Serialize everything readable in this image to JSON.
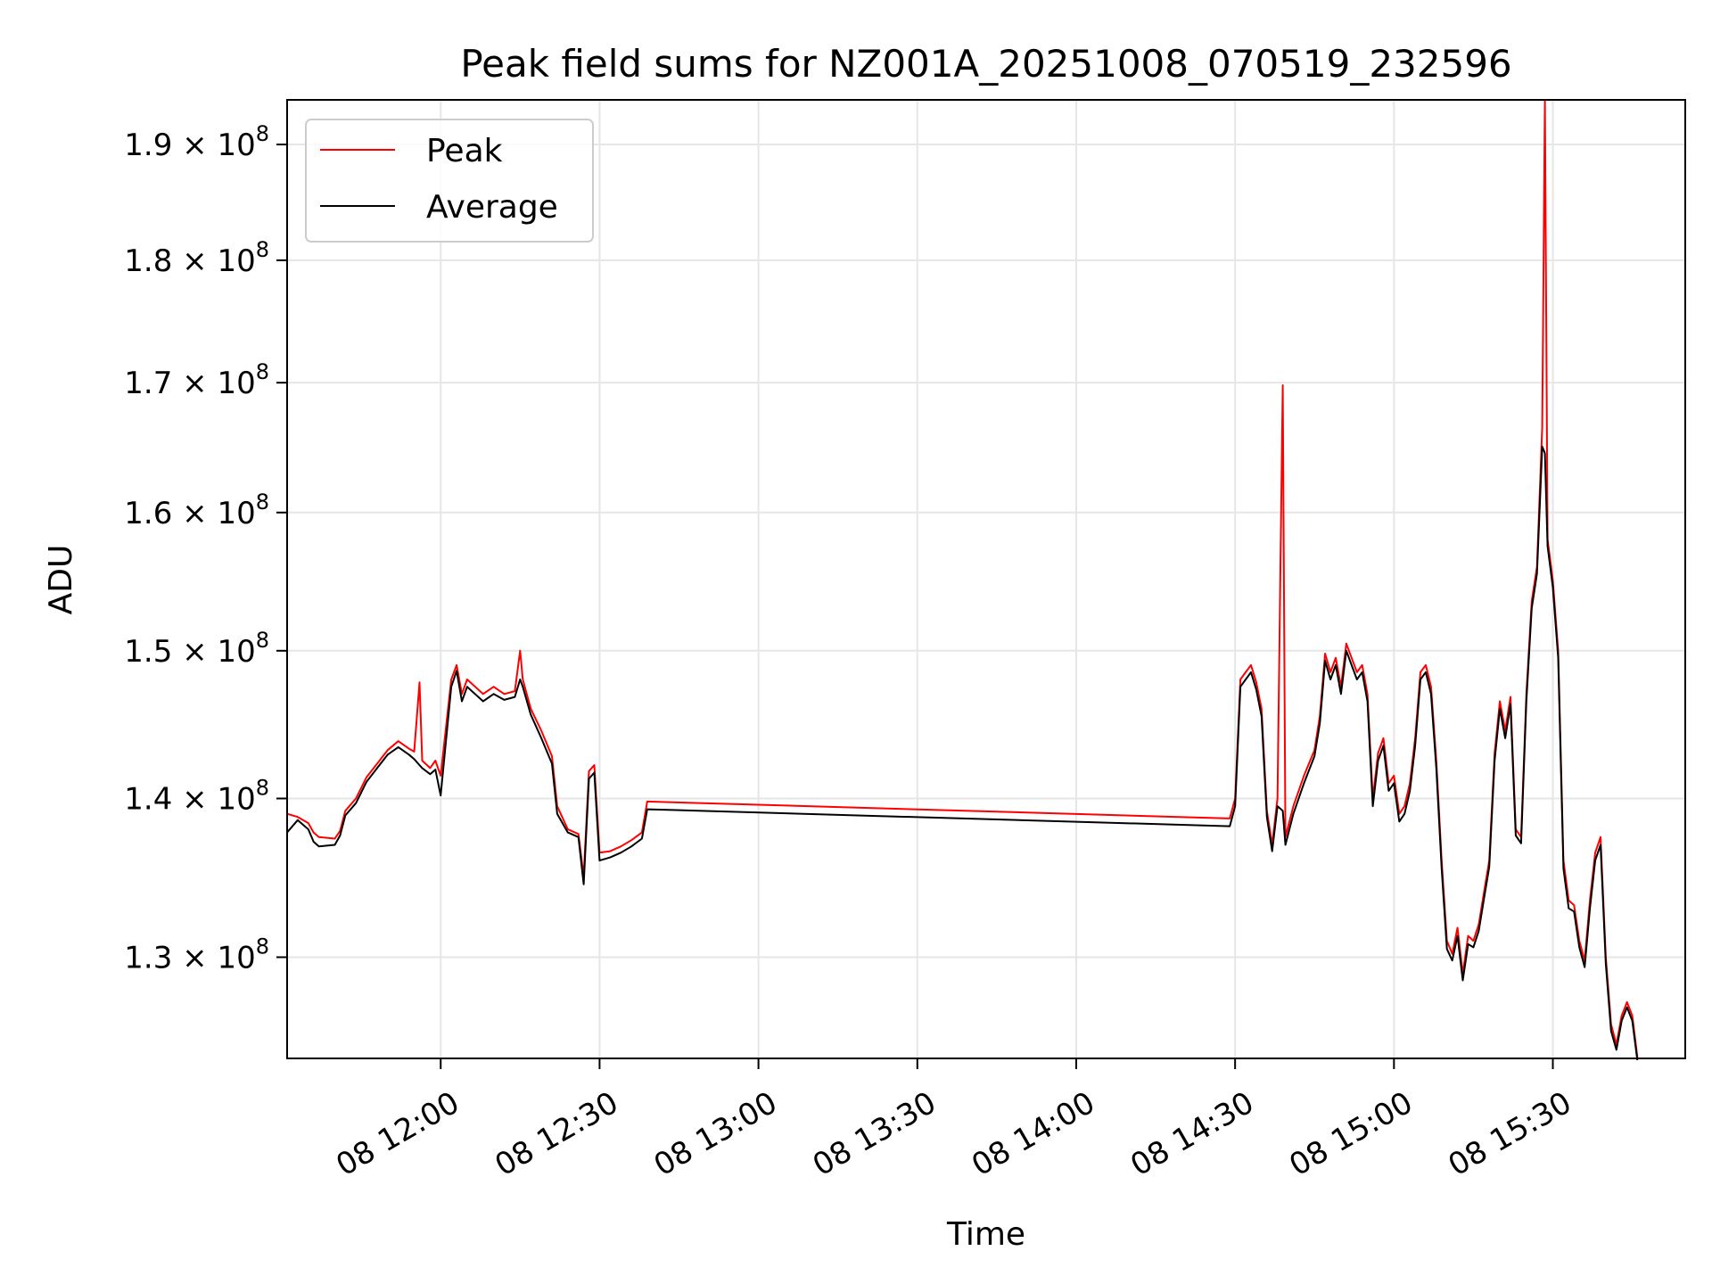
{
  "chart_data": {
    "type": "line",
    "title": "Peak field sums for NZ001A_20251008_070519_232596",
    "xlabel": "Time",
    "ylabel": "ADU",
    "y_scale": "log",
    "grid": true,
    "legend_position": "top-left",
    "xlim": [
      "08 11:31",
      "08 15:55"
    ],
    "ylim": [
      124000000,
      194000000
    ],
    "x_ticks": [
      "08 12:00",
      "08 12:30",
      "08 13:00",
      "08 13:30",
      "08 14:00",
      "08 14:30",
      "08 15:00",
      "08 15:30"
    ],
    "y_ticks": [
      {
        "value": 130000000,
        "mantissa": "1.3",
        "exponent": "8"
      },
      {
        "value": 140000000,
        "mantissa": "1.4",
        "exponent": "8"
      },
      {
        "value": 150000000,
        "mantissa": "1.5",
        "exponent": "8"
      },
      {
        "value": 160000000,
        "mantissa": "1.6",
        "exponent": "8"
      },
      {
        "value": 170000000,
        "mantissa": "1.7",
        "exponent": "8"
      },
      {
        "value": 180000000,
        "mantissa": "1.8",
        "exponent": "8"
      },
      {
        "value": 190000000,
        "mantissa": "1.9",
        "exponent": "8"
      }
    ],
    "series": [
      {
        "name": "Peak",
        "color": "#ff0000",
        "points": [
          [
            "08 11:31",
            139000000
          ],
          [
            "08 11:33",
            138800000
          ],
          [
            "08 11:35",
            138400000
          ],
          [
            "08 11:36",
            137800000
          ],
          [
            "08 11:37",
            137500000
          ],
          [
            "08 11:40",
            137400000
          ],
          [
            "08 11:41",
            137900000
          ],
          [
            "08 11:42",
            139200000
          ],
          [
            "08 11:44",
            140000000
          ],
          [
            "08 11:46",
            141400000
          ],
          [
            "08 11:48",
            142300000
          ],
          [
            "08 11:50",
            143200000
          ],
          [
            "08 11:52",
            143800000
          ],
          [
            "08 11:54",
            143300000
          ],
          [
            "08 11:55",
            143100000
          ],
          [
            "08 11:56",
            147800000
          ],
          [
            "08 11:56.5",
            142500000
          ],
          [
            "08 11:58",
            142000000
          ],
          [
            "08 11:59",
            142500000
          ],
          [
            "08 12:00",
            141500000
          ],
          [
            "08 12:02",
            148000000
          ],
          [
            "08 12:03",
            149000000
          ],
          [
            "08 12:04",
            147000000
          ],
          [
            "08 12:05",
            148000000
          ],
          [
            "08 12:08",
            147000000
          ],
          [
            "08 12:10",
            147500000
          ],
          [
            "08 12:12",
            147000000
          ],
          [
            "08 12:14",
            147200000
          ],
          [
            "08 12:15",
            150000000
          ],
          [
            "08 12:15.5",
            148000000
          ],
          [
            "08 12:17",
            146000000
          ],
          [
            "08 12:19",
            144500000
          ],
          [
            "08 12:21",
            142800000
          ],
          [
            "08 12:22",
            139500000
          ],
          [
            "08 12:24",
            138000000
          ],
          [
            "08 12:26",
            137700000
          ],
          [
            "08 12:27",
            135000000
          ],
          [
            "08 12:28",
            141800000
          ],
          [
            "08 12:29",
            142200000
          ],
          [
            "08 12:30",
            136500000
          ],
          [
            "08 12:32",
            136600000
          ],
          [
            "08 12:34",
            136900000
          ],
          [
            "08 12:36",
            137300000
          ],
          [
            "08 12:38",
            137800000
          ],
          [
            "08 12:39",
            139800000
          ],
          [
            "08 14:29",
            138700000
          ],
          [
            "08 14:30",
            140000000
          ],
          [
            "08 14:31",
            148000000
          ],
          [
            "08 14:32",
            148500000
          ],
          [
            "08 14:33",
            149000000
          ],
          [
            "08 14:34",
            147800000
          ],
          [
            "08 14:35",
            146000000
          ],
          [
            "08 14:36",
            139200000
          ],
          [
            "08 14:37",
            137000000
          ],
          [
            "08 14:38",
            140000000
          ],
          [
            "08 14:39",
            169800000
          ],
          [
            "08 14:39.5",
            137500000
          ],
          [
            "08 14:41",
            139500000
          ],
          [
            "08 14:43",
            141500000
          ],
          [
            "08 14:45",
            143200000
          ],
          [
            "08 14:46",
            145500000
          ],
          [
            "08 14:47",
            149800000
          ],
          [
            "08 14:48",
            148500000
          ],
          [
            "08 14:49",
            149500000
          ],
          [
            "08 14:50",
            147500000
          ],
          [
            "08 14:51",
            150500000
          ],
          [
            "08 14:52",
            149500000
          ],
          [
            "08 14:53",
            148500000
          ],
          [
            "08 14:54",
            149000000
          ],
          [
            "08 14:55",
            147000000
          ],
          [
            "08 14:56",
            140000000
          ],
          [
            "08 14:57",
            143000000
          ],
          [
            "08 14:58",
            144000000
          ],
          [
            "08 14:59",
            141000000
          ],
          [
            "08 15:00",
            141500000
          ],
          [
            "08 15:01",
            139000000
          ],
          [
            "08 15:02",
            139500000
          ],
          [
            "08 15:03",
            141000000
          ],
          [
            "08 15:04",
            144000000
          ],
          [
            "08 15:05",
            148500000
          ],
          [
            "08 15:06",
            149000000
          ],
          [
            "08 15:07",
            147500000
          ],
          [
            "08 15:08",
            142500000
          ],
          [
            "08 15:09",
            136000000
          ],
          [
            "08 15:10",
            131000000
          ],
          [
            "08 15:11",
            130200000
          ],
          [
            "08 15:12",
            131800000
          ],
          [
            "08 15:13",
            129000000
          ],
          [
            "08 15:14",
            131300000
          ],
          [
            "08 15:15",
            131000000
          ],
          [
            "08 15:16",
            132000000
          ],
          [
            "08 15:17",
            134000000
          ],
          [
            "08 15:18",
            136000000
          ],
          [
            "08 15:19",
            143000000
          ],
          [
            "08 15:20",
            146500000
          ],
          [
            "08 15:21",
            144500000
          ],
          [
            "08 15:22",
            146800000
          ],
          [
            "08 15:23",
            138000000
          ],
          [
            "08 15:24",
            137500000
          ],
          [
            "08 15:25",
            147000000
          ],
          [
            "08 15:26",
            153500000
          ],
          [
            "08 15:27",
            156000000
          ],
          [
            "08 15:28",
            166500000
          ],
          [
            "08 15:28.5",
            194000000
          ],
          [
            "08 15:29",
            158000000
          ],
          [
            "08 15:30",
            155000000
          ],
          [
            "08 15:31",
            150000000
          ],
          [
            "08 15:32",
            136000000
          ],
          [
            "08 15:33",
            133500000
          ],
          [
            "08 15:34",
            133200000
          ],
          [
            "08 15:35",
            131000000
          ],
          [
            "08 15:36",
            129800000
          ],
          [
            "08 15:37",
            133500000
          ],
          [
            "08 15:38",
            136500000
          ],
          [
            "08 15:39",
            137500000
          ],
          [
            "08 15:40",
            130000000
          ],
          [
            "08 15:41",
            126000000
          ],
          [
            "08 15:42",
            124800000
          ],
          [
            "08 15:43",
            126500000
          ],
          [
            "08 15:44",
            127300000
          ],
          [
            "08 15:45",
            126500000
          ],
          [
            "08 15:46",
            124000000
          ]
        ]
      },
      {
        "name": "Average",
        "color": "#000000",
        "points": [
          [
            "08 11:31",
            137800000
          ],
          [
            "08 11:33",
            138600000
          ],
          [
            "08 11:35",
            138000000
          ],
          [
            "08 11:36",
            137200000
          ],
          [
            "08 11:37",
            136900000
          ],
          [
            "08 11:40",
            137000000
          ],
          [
            "08 11:41",
            137600000
          ],
          [
            "08 11:42",
            138900000
          ],
          [
            "08 11:44",
            139700000
          ],
          [
            "08 11:46",
            141100000
          ],
          [
            "08 11:48",
            142000000
          ],
          [
            "08 11:50",
            142900000
          ],
          [
            "08 11:52",
            143400000
          ],
          [
            "08 11:54",
            142900000
          ],
          [
            "08 11:55",
            142600000
          ],
          [
            "08 11:56",
            142200000
          ],
          [
            "08 11:56.5",
            142000000
          ],
          [
            "08 11:58",
            141600000
          ],
          [
            "08 11:59",
            141900000
          ],
          [
            "08 12:00",
            140200000
          ],
          [
            "08 12:02",
            147500000
          ],
          [
            "08 12:03",
            148600000
          ],
          [
            "08 12:04",
            146500000
          ],
          [
            "08 12:05",
            147500000
          ],
          [
            "08 12:08",
            146500000
          ],
          [
            "08 12:10",
            147000000
          ],
          [
            "08 12:12",
            146600000
          ],
          [
            "08 12:14",
            146800000
          ],
          [
            "08 12:15",
            148000000
          ],
          [
            "08 12:15.5",
            147500000
          ],
          [
            "08 12:17",
            145600000
          ],
          [
            "08 12:19",
            144000000
          ],
          [
            "08 12:21",
            142300000
          ],
          [
            "08 12:22",
            139000000
          ],
          [
            "08 12:24",
            137800000
          ],
          [
            "08 12:26",
            137500000
          ],
          [
            "08 12:27",
            134500000
          ],
          [
            "08 12:28",
            141300000
          ],
          [
            "08 12:29",
            141700000
          ],
          [
            "08 12:30",
            136000000
          ],
          [
            "08 12:32",
            136200000
          ],
          [
            "08 12:34",
            136500000
          ],
          [
            "08 12:36",
            136900000
          ],
          [
            "08 12:38",
            137400000
          ],
          [
            "08 12:39",
            139300000
          ],
          [
            "08 14:29",
            138200000
          ],
          [
            "08 14:30",
            139500000
          ],
          [
            "08 14:31",
            147500000
          ],
          [
            "08 14:32",
            148000000
          ],
          [
            "08 14:33",
            148500000
          ],
          [
            "08 14:34",
            147300000
          ],
          [
            "08 14:35",
            145500000
          ],
          [
            "08 14:36",
            138800000
          ],
          [
            "08 14:37",
            136600000
          ],
          [
            "08 14:38",
            139500000
          ],
          [
            "08 14:39",
            139200000
          ],
          [
            "08 14:39.5",
            137000000
          ],
          [
            "08 14:41",
            139000000
          ],
          [
            "08 14:43",
            141000000
          ],
          [
            "08 14:45",
            142800000
          ],
          [
            "08 14:46",
            145000000
          ],
          [
            "08 14:47",
            149300000
          ],
          [
            "08 14:48",
            148000000
          ],
          [
            "08 14:49",
            149000000
          ],
          [
            "08 14:50",
            147000000
          ],
          [
            "08 14:51",
            150000000
          ],
          [
            "08 14:52",
            149000000
          ],
          [
            "08 14:53",
            148000000
          ],
          [
            "08 14:54",
            148500000
          ],
          [
            "08 14:55",
            146500000
          ],
          [
            "08 14:56",
            139500000
          ],
          [
            "08 14:57",
            142500000
          ],
          [
            "08 14:58",
            143500000
          ],
          [
            "08 14:59",
            140500000
          ],
          [
            "08 15:00",
            141000000
          ],
          [
            "08 15:01",
            138500000
          ],
          [
            "08 15:02",
            139000000
          ],
          [
            "08 15:03",
            140500000
          ],
          [
            "08 15:04",
            143500000
          ],
          [
            "08 15:05",
            148000000
          ],
          [
            "08 15:06",
            148500000
          ],
          [
            "08 15:07",
            147000000
          ],
          [
            "08 15:08",
            142000000
          ],
          [
            "08 15:09",
            135500000
          ],
          [
            "08 15:10",
            130500000
          ],
          [
            "08 15:11",
            129800000
          ],
          [
            "08 15:12",
            131300000
          ],
          [
            "08 15:13",
            128600000
          ],
          [
            "08 15:14",
            130800000
          ],
          [
            "08 15:15",
            130600000
          ],
          [
            "08 15:16",
            131600000
          ],
          [
            "08 15:17",
            133600000
          ],
          [
            "08 15:18",
            135600000
          ],
          [
            "08 15:19",
            142500000
          ],
          [
            "08 15:20",
            146000000
          ],
          [
            "08 15:21",
            144000000
          ],
          [
            "08 15:22",
            146300000
          ],
          [
            "08 15:23",
            137600000
          ],
          [
            "08 15:24",
            137100000
          ],
          [
            "08 15:25",
            146500000
          ],
          [
            "08 15:26",
            153000000
          ],
          [
            "08 15:27",
            155500000
          ],
          [
            "08 15:28",
            165000000
          ],
          [
            "08 15:28.5",
            164500000
          ],
          [
            "08 15:29",
            157500000
          ],
          [
            "08 15:30",
            154500000
          ],
          [
            "08 15:31",
            149500000
          ],
          [
            "08 15:32",
            135500000
          ],
          [
            "08 15:33",
            133000000
          ],
          [
            "08 15:34",
            132800000
          ],
          [
            "08 15:35",
            130600000
          ],
          [
            "08 15:36",
            129400000
          ],
          [
            "08 15:37",
            133000000
          ],
          [
            "08 15:38",
            136000000
          ],
          [
            "08 15:39",
            137000000
          ],
          [
            "08 15:40",
            129600000
          ],
          [
            "08 15:41",
            125600000
          ],
          [
            "08 15:42",
            124500000
          ],
          [
            "08 15:43",
            126200000
          ],
          [
            "08 15:44",
            127000000
          ],
          [
            "08 15:45",
            126200000
          ],
          [
            "08 15:46",
            123800000
          ]
        ]
      }
    ]
  }
}
